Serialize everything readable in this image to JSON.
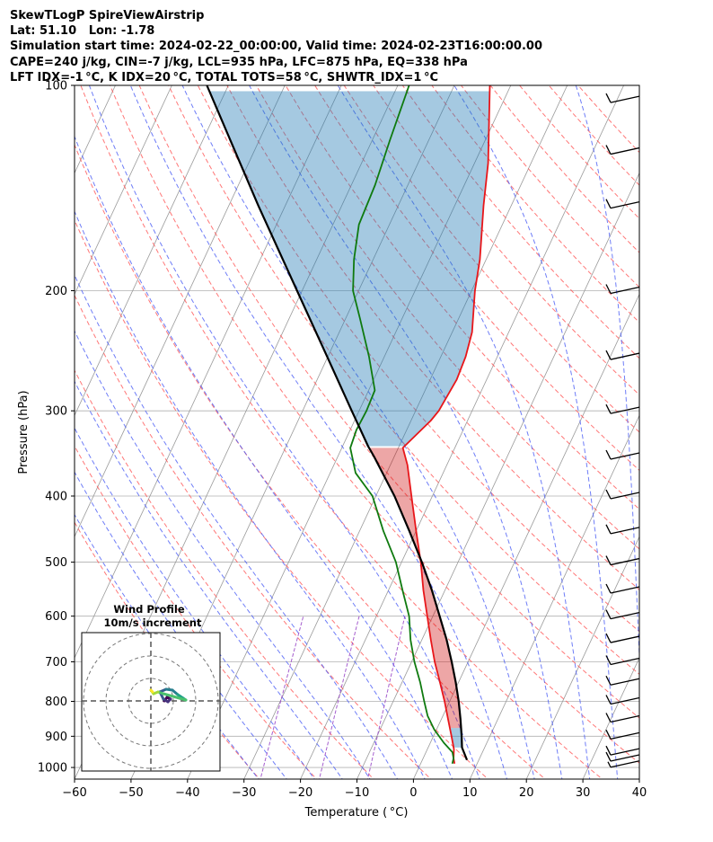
{
  "title_lines": [
    "SkewTLogP SpireViewAirstrip",
    "Lat: 51.10   Lon: -1.78",
    "Simulation start time: 2024-02-22_00:00:00, Valid time: 2024-02-23T16:00:00.00",
    "CAPE=240 j/kg, CIN=-7 j/kg, LCL=935 hPa, LFC=875 hPa, EQ=338 hPa",
    "LFT IDX=-1 °C, K IDX=20 °C, TOTAL TOTS=58 °C, SHWTR_IDX=1 °C"
  ],
  "chart_data": {
    "type": "line",
    "subtype": "skew-T log-P",
    "xlabel": "Temperature ( °C)",
    "ylabel": "Pressure (hPa)",
    "xlim": [
      -60,
      40
    ],
    "ylim": [
      1040,
      100
    ],
    "y_scale": "log",
    "x_ticks": [
      -60,
      -50,
      -40,
      -30,
      -20,
      -10,
      0,
      10,
      20,
      30,
      40
    ],
    "x_tick_labels": [
      "−60",
      "−50",
      "−40",
      "−30",
      "−20",
      "−10",
      "0",
      "10",
      "20",
      "30",
      "40"
    ],
    "y_ticks": [
      1000,
      900,
      800,
      700,
      600,
      500,
      400,
      300,
      200,
      100
    ],
    "y_tick_labels": [
      "1000",
      "900",
      "800",
      "700",
      "600",
      "500",
      "400",
      "300",
      "200",
      "100"
    ],
    "grid": true,
    "series": [
      {
        "role": "temperature",
        "color": "#e8161a",
        "points": [
          [
            987,
            6.0
          ],
          [
            970,
            5.4
          ],
          [
            940,
            4.7
          ],
          [
            900,
            3.2
          ],
          [
            850,
            1.2
          ],
          [
            800,
            -0.9
          ],
          [
            750,
            -3.3
          ],
          [
            700,
            -5.9
          ],
          [
            650,
            -8.4
          ],
          [
            600,
            -11.0
          ],
          [
            550,
            -13.8
          ],
          [
            500,
            -16.6
          ],
          [
            450,
            -20.0
          ],
          [
            400,
            -23.7
          ],
          [
            360,
            -27.0
          ],
          [
            340,
            -29.2
          ],
          [
            310,
            -26.5
          ],
          [
            300,
            -25.9
          ],
          [
            270,
            -25.3
          ],
          [
            250,
            -25.6
          ],
          [
            230,
            -26.5
          ],
          [
            200,
            -29.4
          ],
          [
            180,
            -31.1
          ],
          [
            150,
            -34.9
          ],
          [
            130,
            -37.6
          ],
          [
            100,
            -43.7
          ]
        ]
      },
      {
        "role": "dewpoint",
        "color": "#0f7a0f",
        "points": [
          [
            987,
            5.6
          ],
          [
            970,
            5.4
          ],
          [
            950,
            4.7
          ],
          [
            920,
            2.4
          ],
          [
            880,
            -0.4
          ],
          [
            840,
            -2.7
          ],
          [
            800,
            -4.5
          ],
          [
            750,
            -6.8
          ],
          [
            700,
            -9.5
          ],
          [
            650,
            -12.0
          ],
          [
            600,
            -14.2
          ],
          [
            550,
            -17.5
          ],
          [
            500,
            -21.0
          ],
          [
            450,
            -25.8
          ],
          [
            400,
            -30.6
          ],
          [
            370,
            -35.5
          ],
          [
            340,
            -38.5
          ],
          [
            320,
            -38.9
          ],
          [
            300,
            -38.7
          ],
          [
            280,
            -38.9
          ],
          [
            250,
            -42.7
          ],
          [
            220,
            -47.4
          ],
          [
            200,
            -51.0
          ],
          [
            180,
            -53.4
          ],
          [
            160,
            -55.4
          ],
          [
            140,
            -55.8
          ],
          [
            120,
            -56.9
          ],
          [
            100,
            -58.0
          ]
        ]
      },
      {
        "role": "parcel",
        "color": "#000000",
        "points": [
          [
            975,
            7.9
          ],
          [
            935,
            6.0
          ],
          [
            900,
            5.0
          ],
          [
            850,
            3.4
          ],
          [
            800,
            1.6
          ],
          [
            750,
            -0.5
          ],
          [
            700,
            -2.9
          ],
          [
            650,
            -5.6
          ],
          [
            600,
            -8.8
          ],
          [
            550,
            -12.3
          ],
          [
            500,
            -16.4
          ],
          [
            450,
            -21.2
          ],
          [
            400,
            -26.7
          ],
          [
            350,
            -33.6
          ],
          [
            338,
            -35.5
          ],
          [
            300,
            -41.3
          ],
          [
            250,
            -50.1
          ],
          [
            200,
            -60.9
          ],
          [
            150,
            -74.8
          ],
          [
            100,
            -93.8
          ]
        ]
      }
    ],
    "shaded_areas": [
      {
        "name": "CAPE",
        "color": "#cc0000",
        "alpha": 0.35
      },
      {
        "name": "CIN",
        "color": "#1f77b4",
        "alpha": 0.4
      }
    ],
    "reference_lines": {
      "isotherms_color": "#9a9a9a",
      "dry_adiabats_color": "#ff5555",
      "moist_adiabats_color": "#4a5cf5",
      "mixing_ratio_color": "#9b4dc9"
    },
    "wind_barbs": [
      {
        "p": 990,
        "barb": "short"
      },
      {
        "p": 970,
        "barb": "long"
      },
      {
        "p": 950,
        "barb": "long"
      },
      {
        "p": 900,
        "barb": "long"
      },
      {
        "p": 850,
        "barb": "long"
      },
      {
        "p": 800,
        "barb": "long"
      },
      {
        "p": 750,
        "barb": "long"
      },
      {
        "p": 700,
        "barb": "long"
      },
      {
        "p": 650,
        "barb": "long"
      },
      {
        "p": 600,
        "barb": "long"
      },
      {
        "p": 550,
        "barb": "long"
      },
      {
        "p": 500,
        "barb": "long"
      },
      {
        "p": 450,
        "barb": "long"
      },
      {
        "p": 400,
        "barb": "long"
      },
      {
        "p": 350,
        "barb": "long"
      },
      {
        "p": 300,
        "barb": "long"
      },
      {
        "p": 250,
        "barb": "long"
      },
      {
        "p": 200,
        "barb": "long"
      },
      {
        "p": 150,
        "barb": "long"
      },
      {
        "p": 125,
        "barb": "long"
      },
      {
        "p": 105,
        "barb": "long"
      }
    ],
    "inset": {
      "title": "Wind Profile",
      "subtitle": "10m/s increment",
      "rings": 3,
      "hodograph_color_start": "#440154",
      "hodograph_color_end": "#fde725"
    }
  }
}
